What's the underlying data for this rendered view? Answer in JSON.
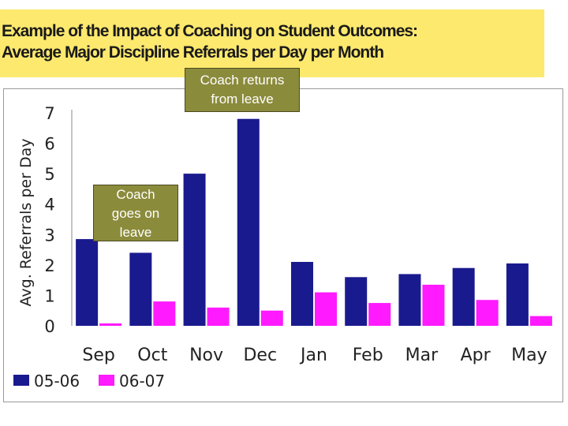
{
  "title": {
    "line1": "Example of the Impact of Coaching on Student Outcomes:",
    "line2": "Average Major Discipline Referrals per Day per Month"
  },
  "annotations": {
    "coach_returns": [
      "Coach returns",
      "from leave"
    ],
    "coach_leaves": [
      "Coach",
      "goes on",
      "leave"
    ]
  },
  "colors": {
    "title_band": "#fde96e",
    "series_1": "#1a1a8f",
    "series_2": "#ff1aff",
    "callout_bg": "#8b8b3c"
  },
  "chart_data": {
    "type": "bar",
    "categories": [
      "Sep",
      "Oct",
      "Nov",
      "Dec",
      "Jan",
      "Feb",
      "Mar",
      "Apr",
      "May"
    ],
    "series": [
      {
        "name": "05-06",
        "values": [
          2.85,
          2.4,
          5.0,
          6.8,
          2.1,
          1.6,
          1.7,
          1.9,
          2.05
        ]
      },
      {
        "name": "06-07",
        "values": [
          0.08,
          0.8,
          0.6,
          0.5,
          1.1,
          0.75,
          1.35,
          0.85,
          0.32
        ]
      }
    ],
    "title": "",
    "xlabel": "",
    "ylabel": "Avg. Referrals per Day",
    "ylim": [
      0,
      7
    ],
    "yticks": [
      "0",
      "1",
      "2",
      "3",
      "4",
      "5",
      "6",
      "7"
    ],
    "grid": false,
    "legend_position": "bottom-left"
  }
}
